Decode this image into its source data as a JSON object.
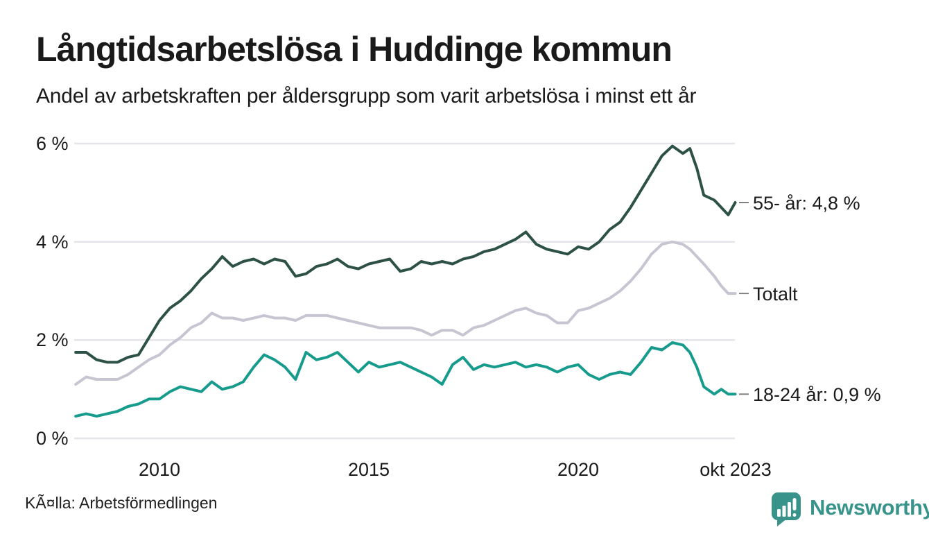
{
  "chart_data": {
    "type": "line",
    "title": "Långtidsarbetslösa i Huddinge kommun",
    "subtitle": "Andel av arbetskraften per åldersgrupp som varit arbetslösa i minst ett år",
    "unit": "%",
    "grid": "horizontal",
    "legend_position": "end-of-line-labels-right",
    "xlabel": "",
    "ylabel": "",
    "ylim": [
      0,
      6
    ],
    "x_range_dates": [
      "2008-01",
      "2023-10"
    ],
    "y_ticks": [
      {
        "label": "0 %",
        "v": 0
      },
      {
        "label": "2 %",
        "v": 2
      },
      {
        "label": "4 %",
        "v": 4
      },
      {
        "label": "6 %",
        "v": 6
      }
    ],
    "x_ticks": [
      {
        "label": "2010",
        "t": 2010
      },
      {
        "label": "2015",
        "t": 2015
      },
      {
        "label": "2020",
        "t": 2020
      },
      {
        "label": "okt 2023",
        "t": 2023.75
      }
    ],
    "dates": [
      "2008-01",
      "2008-04",
      "2008-07",
      "2008-10",
      "2009-01",
      "2009-04",
      "2009-07",
      "2009-10",
      "2010-01",
      "2010-04",
      "2010-07",
      "2010-10",
      "2011-01",
      "2011-04",
      "2011-07",
      "2011-10",
      "2012-01",
      "2012-04",
      "2012-07",
      "2012-10",
      "2013-01",
      "2013-04",
      "2013-07",
      "2013-10",
      "2014-01",
      "2014-04",
      "2014-07",
      "2014-10",
      "2015-01",
      "2015-04",
      "2015-07",
      "2015-10",
      "2016-01",
      "2016-04",
      "2016-07",
      "2016-10",
      "2017-01",
      "2017-04",
      "2017-07",
      "2017-10",
      "2018-01",
      "2018-04",
      "2018-07",
      "2018-10",
      "2019-01",
      "2019-04",
      "2019-07",
      "2019-10",
      "2020-01",
      "2020-04",
      "2020-07",
      "2020-10",
      "2021-01",
      "2021-04",
      "2021-07",
      "2021-10",
      "2022-01",
      "2022-04",
      "2022-07",
      "2022-09",
      "2022-11",
      "2023-01",
      "2023-04",
      "2023-06",
      "2023-08",
      "2023-10"
    ],
    "series": [
      {
        "id": "55-ar",
        "name": "55- år",
        "end_label": "55- år: 4,8 %",
        "end_value": "4,8 %",
        "color": "#2d5146",
        "values": [
          1.75,
          1.75,
          1.6,
          1.55,
          1.55,
          1.65,
          1.7,
          2.05,
          2.4,
          2.65,
          2.8,
          3.0,
          3.25,
          3.45,
          3.7,
          3.5,
          3.6,
          3.65,
          3.55,
          3.65,
          3.6,
          3.3,
          3.35,
          3.5,
          3.55,
          3.65,
          3.5,
          3.45,
          3.55,
          3.6,
          3.65,
          3.4,
          3.45,
          3.6,
          3.55,
          3.6,
          3.55,
          3.65,
          3.7,
          3.8,
          3.85,
          3.95,
          4.05,
          4.2,
          3.95,
          3.85,
          3.8,
          3.75,
          3.9,
          3.85,
          4.0,
          4.25,
          4.4,
          4.7,
          5.05,
          5.4,
          5.75,
          5.95,
          5.8,
          5.9,
          5.5,
          4.95,
          4.85,
          4.7,
          4.55,
          4.8
        ]
      },
      {
        "id": "totalt",
        "name": "Totalt",
        "end_label": "Totalt",
        "end_value": "",
        "color": "#c8c5d2",
        "values": [
          1.1,
          1.25,
          1.2,
          1.2,
          1.2,
          1.3,
          1.45,
          1.6,
          1.7,
          1.9,
          2.05,
          2.25,
          2.35,
          2.55,
          2.45,
          2.45,
          2.4,
          2.45,
          2.5,
          2.45,
          2.45,
          2.4,
          2.5,
          2.5,
          2.5,
          2.45,
          2.4,
          2.35,
          2.3,
          2.25,
          2.25,
          2.25,
          2.25,
          2.2,
          2.1,
          2.2,
          2.2,
          2.1,
          2.25,
          2.3,
          2.4,
          2.5,
          2.6,
          2.65,
          2.55,
          2.5,
          2.35,
          2.35,
          2.6,
          2.65,
          2.75,
          2.85,
          3.0,
          3.2,
          3.45,
          3.75,
          3.95,
          4.0,
          3.95,
          3.85,
          3.7,
          3.55,
          3.3,
          3.1,
          2.95,
          2.95
        ]
      },
      {
        "id": "18-24-ar",
        "name": "18-24 år",
        "end_label": "18-24 år: 0,9 %",
        "end_value": "0,9 %",
        "color": "#169b8d",
        "values": [
          0.45,
          0.5,
          0.45,
          0.5,
          0.55,
          0.65,
          0.7,
          0.8,
          0.8,
          0.95,
          1.05,
          1.0,
          0.95,
          1.15,
          1.0,
          1.05,
          1.15,
          1.45,
          1.7,
          1.6,
          1.45,
          1.2,
          1.75,
          1.6,
          1.65,
          1.75,
          1.55,
          1.35,
          1.55,
          1.45,
          1.5,
          1.55,
          1.45,
          1.35,
          1.25,
          1.1,
          1.5,
          1.65,
          1.4,
          1.5,
          1.45,
          1.5,
          1.55,
          1.45,
          1.5,
          1.45,
          1.35,
          1.45,
          1.5,
          1.3,
          1.2,
          1.3,
          1.35,
          1.3,
          1.55,
          1.85,
          1.8,
          1.95,
          1.9,
          1.75,
          1.45,
          1.05,
          0.9,
          1.0,
          0.9,
          0.9
        ]
      }
    ]
  },
  "footer": {
    "source": "KÃ¤lla: Arbetsförmedlingen",
    "brand": "Newsworthy"
  },
  "colors": {
    "grid": "#e4e4e9",
    "connector": "#808080",
    "text": "#1a1a1a",
    "brand_teal": "#38948a"
  }
}
